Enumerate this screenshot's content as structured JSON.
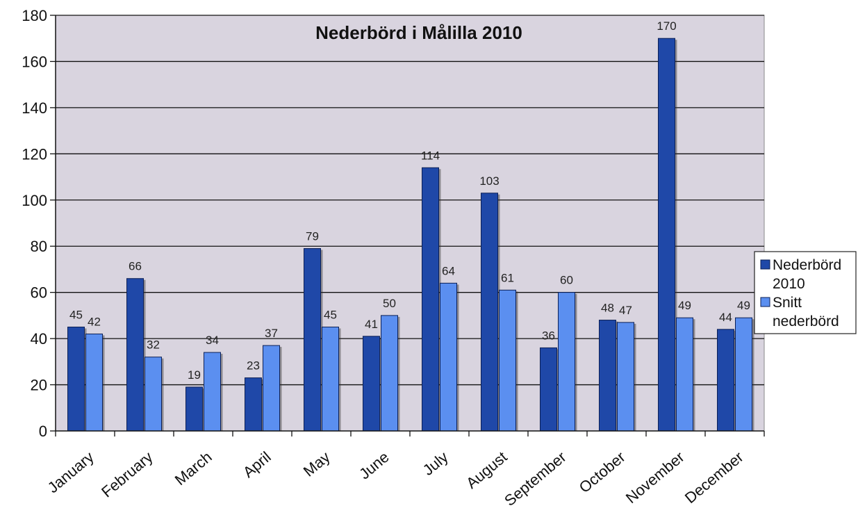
{
  "chart_data": {
    "type": "bar",
    "title": "Nederbörd i Målilla 2010",
    "xlabel": "",
    "ylabel": "",
    "ylim": [
      0,
      180
    ],
    "yticks": [
      0,
      20,
      40,
      60,
      80,
      100,
      120,
      140,
      160,
      180
    ],
    "grid": true,
    "legend_position": "right",
    "categories": [
      "January",
      "February",
      "March",
      "April",
      "May",
      "June",
      "July",
      "August",
      "September",
      "October",
      "November",
      "December"
    ],
    "series": [
      {
        "name": "Nederbörd 2010",
        "legend_lines": [
          "Nederbörd",
          "2010"
        ],
        "color": "#1f48a8",
        "values": [
          45,
          66,
          19,
          23,
          79,
          41,
          114,
          103,
          36,
          48,
          170,
          44
        ]
      },
      {
        "name": "Snitt nederbörd",
        "legend_lines": [
          "Snitt",
          "nederbörd"
        ],
        "color": "#5b8ff0",
        "values": [
          42,
          32,
          34,
          37,
          45,
          50,
          64,
          61,
          60,
          47,
          49,
          49
        ]
      }
    ],
    "colors": {
      "plot_background": "#d9d4df",
      "grid": "#111111"
    }
  }
}
